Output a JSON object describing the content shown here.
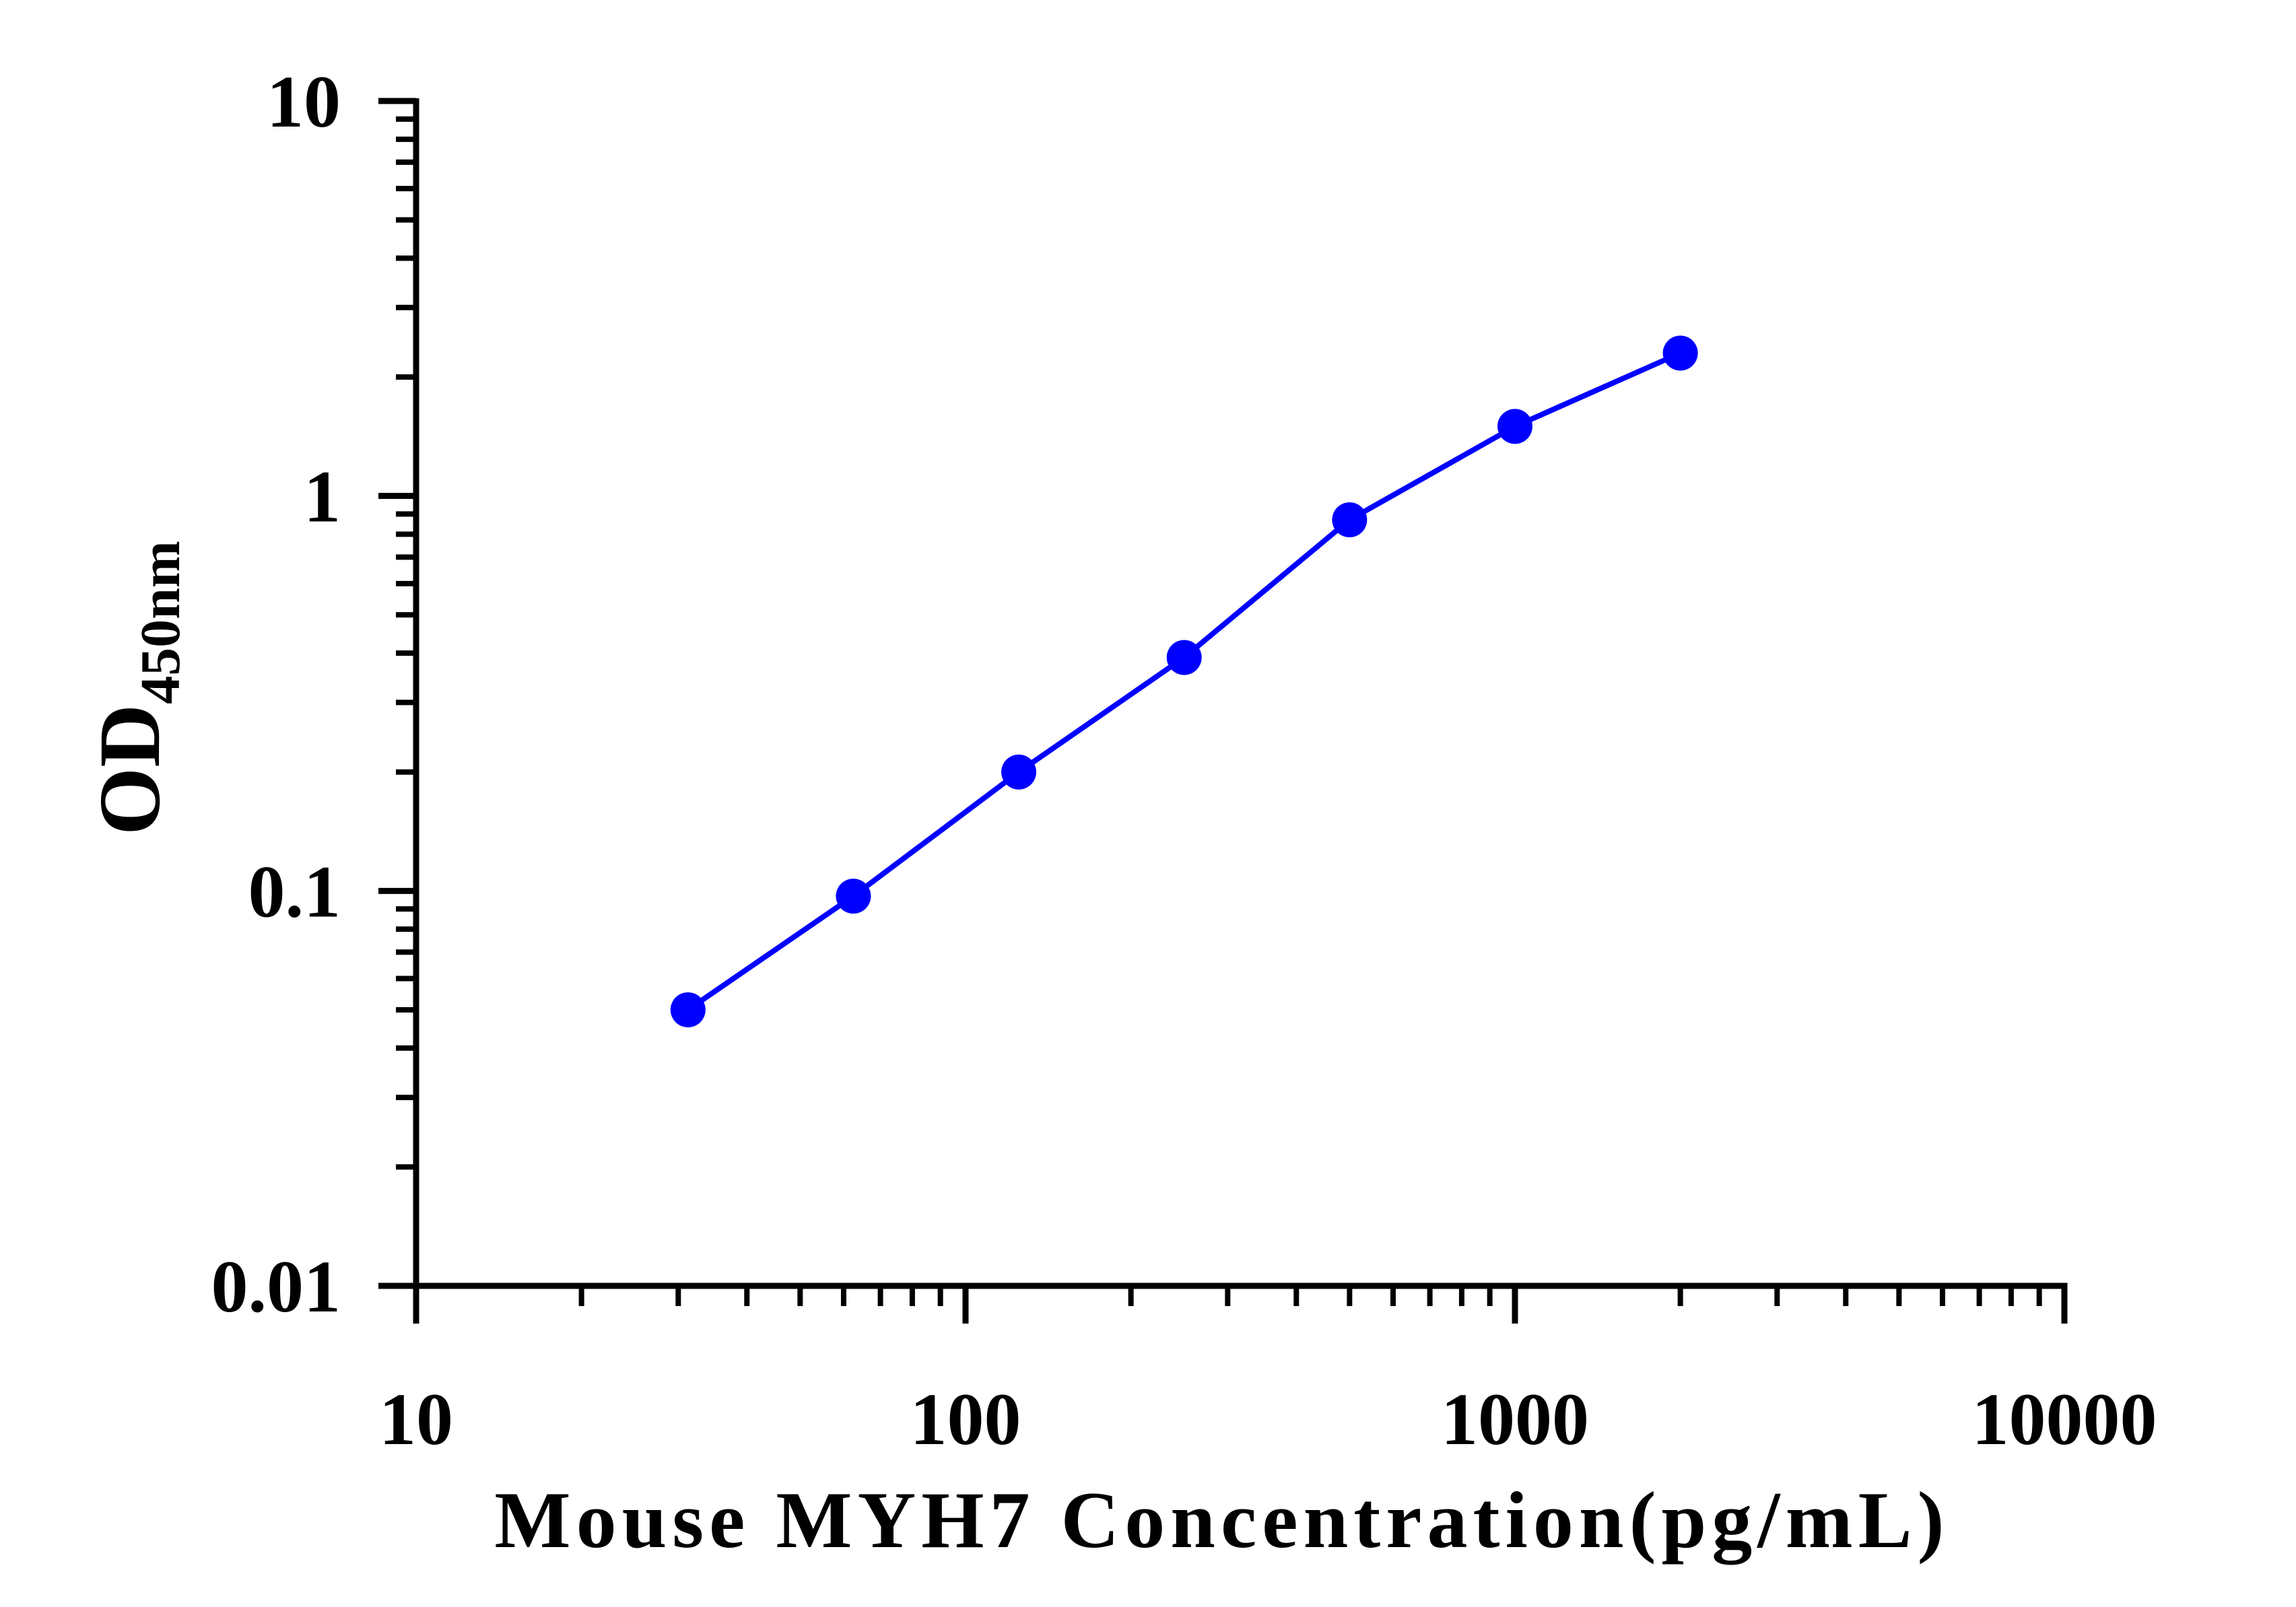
{
  "chart_data": {
    "type": "line",
    "xlabel": "Mouse MYH7 Concentration(pg/mL)",
    "ylabel": "OD",
    "ylabel_subscript": "450nm",
    "x_scale": "log",
    "y_scale": "log",
    "xlim": [
      10,
      10000
    ],
    "ylim": [
      0.01,
      10
    ],
    "x_ticks": [
      "10",
      "100",
      "1000",
      "10000"
    ],
    "y_ticks": [
      "0.01",
      "0.1",
      "1",
      "10"
    ],
    "grid": false,
    "legend": "none",
    "series": [
      {
        "x": [
          31.25,
          62.5,
          125,
          250,
          500,
          1000,
          2000
        ],
        "y": [
          0.05,
          0.097,
          0.2,
          0.39,
          0.87,
          1.5,
          2.3
        ],
        "color": "#0000ff",
        "marker": "circle"
      }
    ]
  }
}
